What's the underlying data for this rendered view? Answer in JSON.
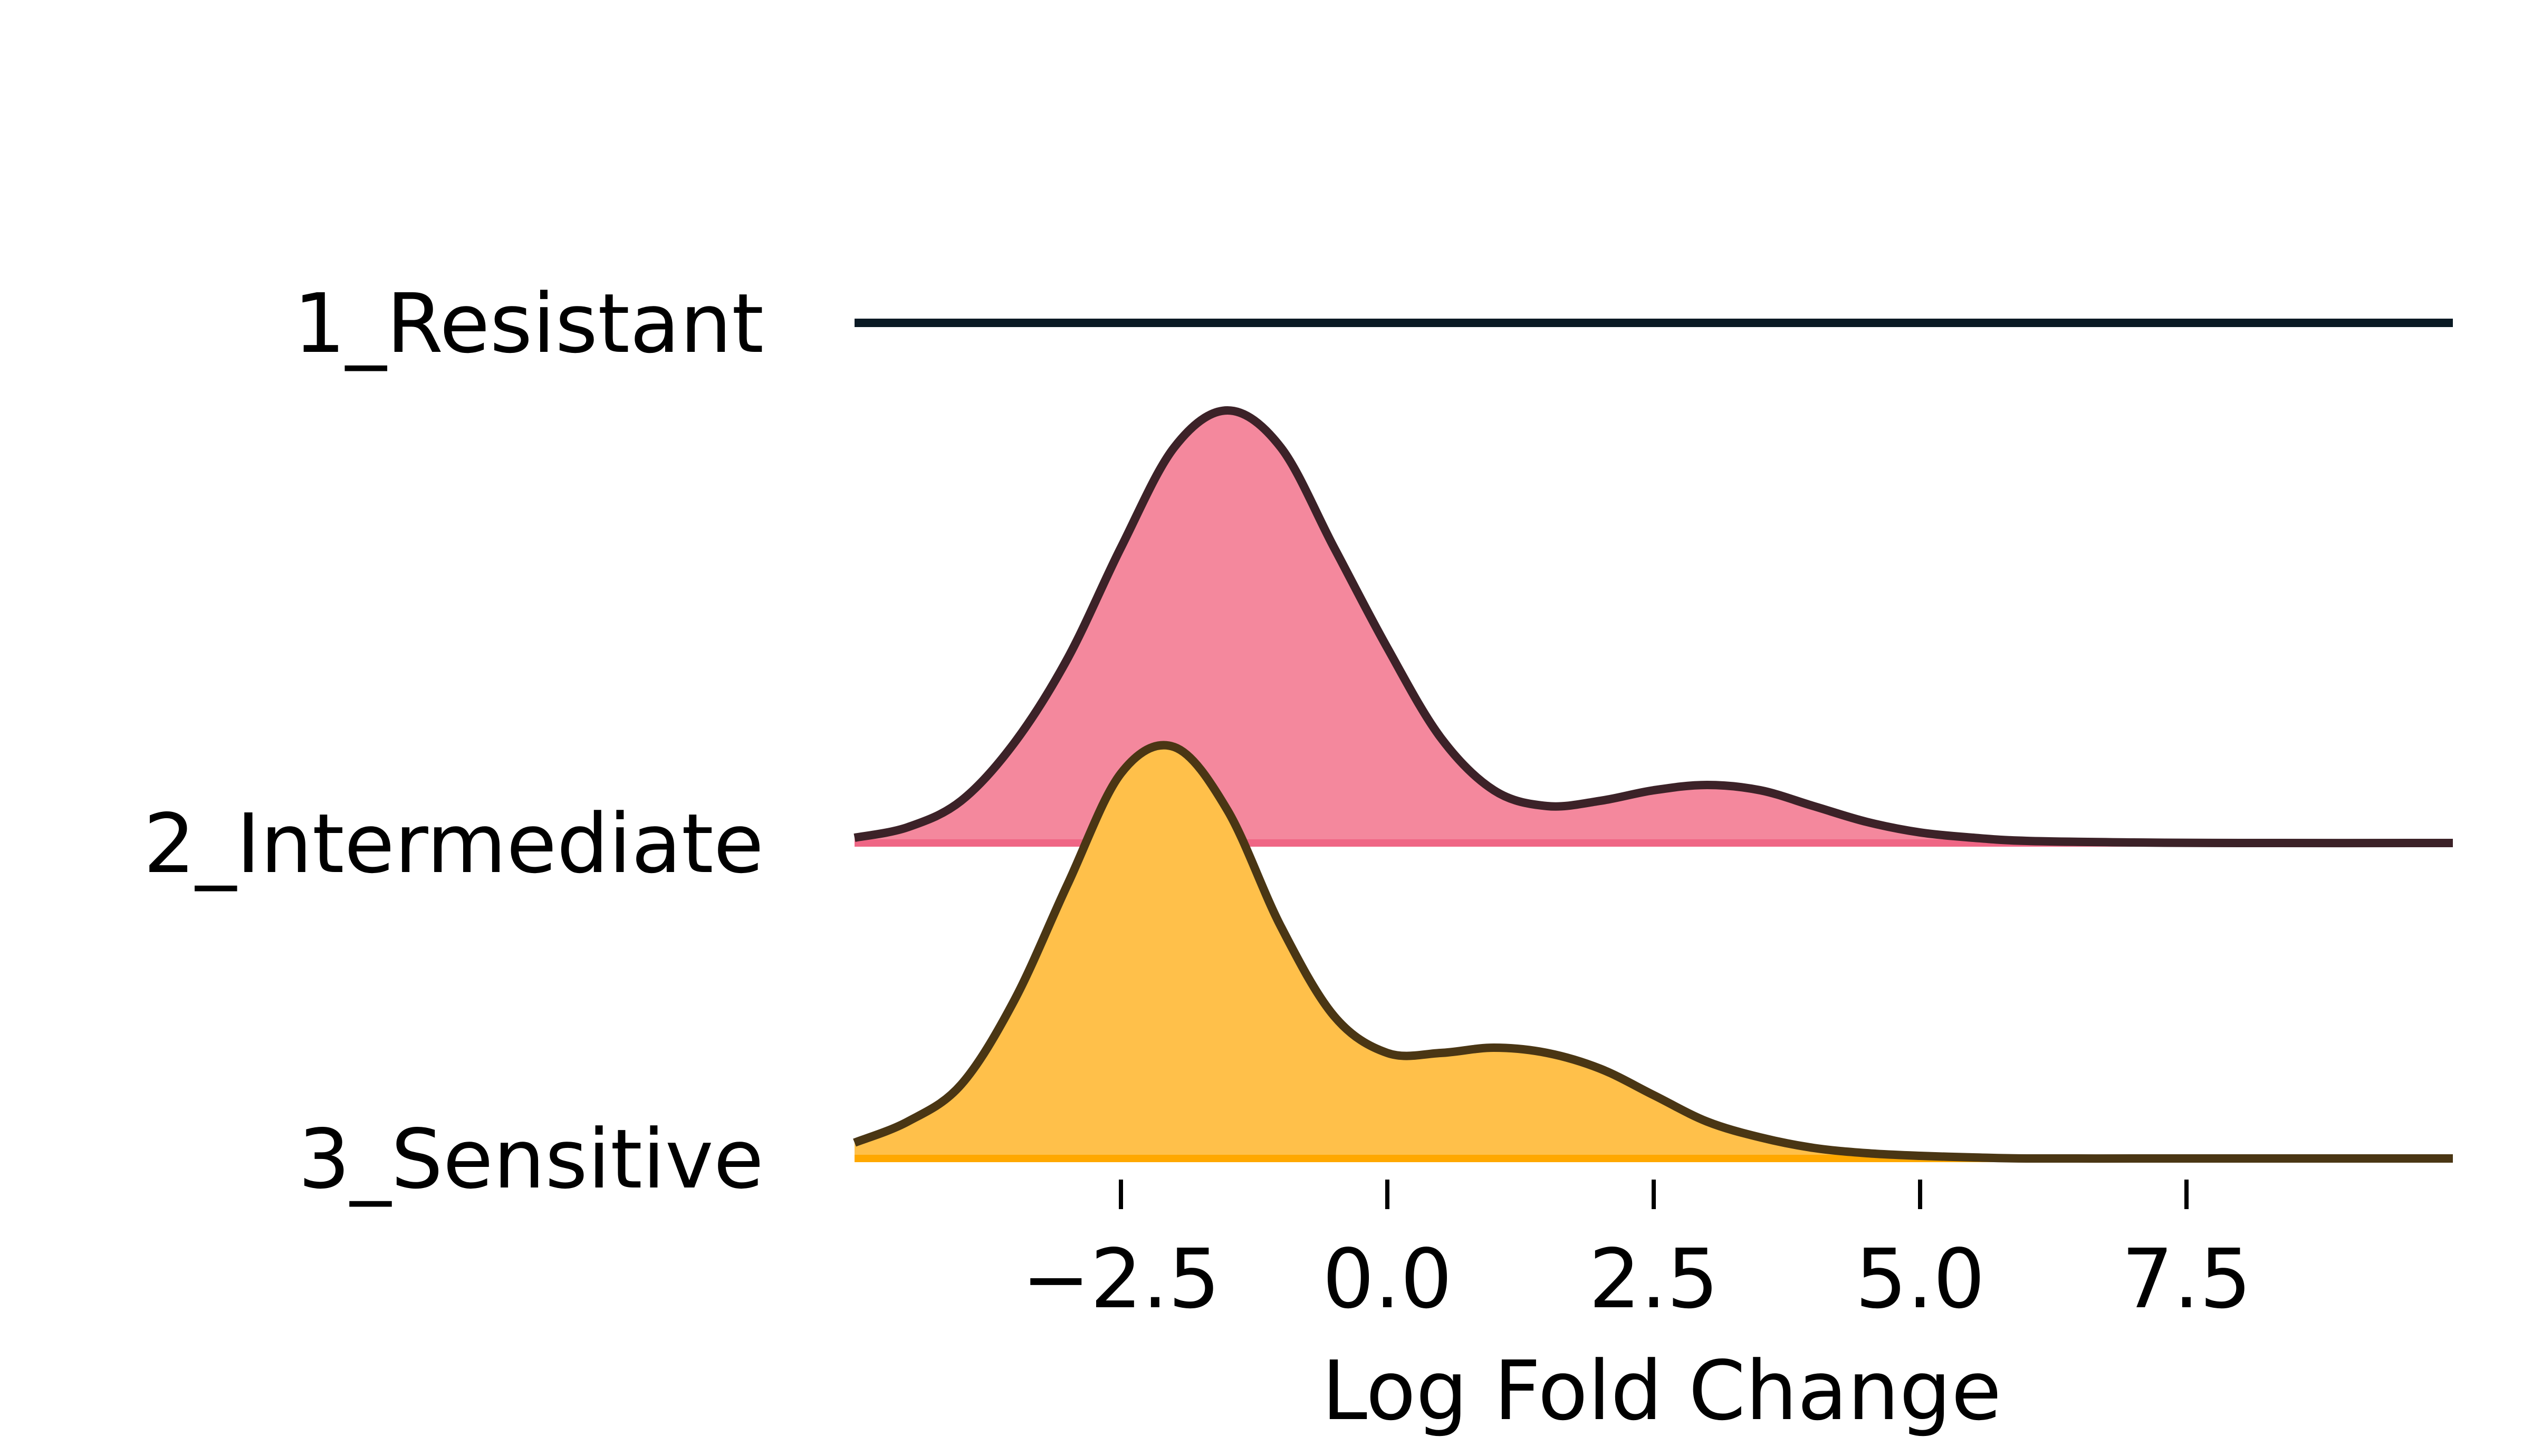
{
  "chart_data": {
    "type": "area",
    "subtype": "ridgeline",
    "title": "",
    "xlabel": "Log Fold Change",
    "ylabel": "",
    "xlim": [
      -5.0,
      10.0
    ],
    "xticks": [
      -2.5,
      0.0,
      2.5,
      5.0,
      7.5
    ],
    "xtick_labels": [
      "−2.5",
      "0.0",
      "2.5",
      "5.0",
      "7.5"
    ],
    "grid": false,
    "x": [
      -5.0,
      -4.5,
      -4.0,
      -3.5,
      -3.0,
      -2.5,
      -2.0,
      -1.5,
      -1.0,
      -0.5,
      0.0,
      0.5,
      1.0,
      1.5,
      2.0,
      2.5,
      3.0,
      3.5,
      4.0,
      4.5,
      5.0,
      5.5,
      6.0,
      7.0,
      8.0,
      10.0
    ],
    "series": [
      {
        "name": "1_Resistant",
        "color": "#0a1a24",
        "fill": "none",
        "density": [
          0,
          0,
          0,
          0,
          0,
          0,
          0,
          0,
          0,
          0,
          0,
          0,
          0,
          0,
          0,
          0,
          0,
          0,
          0,
          0,
          0,
          0,
          0,
          0,
          0,
          0
        ]
      },
      {
        "name": "2_Intermediate",
        "color": "#ef6685",
        "fill": "#f4889d",
        "line": "#3c2228",
        "density": [
          0.01,
          0.03,
          0.08,
          0.19,
          0.35,
          0.56,
          0.75,
          0.82,
          0.75,
          0.56,
          0.37,
          0.2,
          0.1,
          0.07,
          0.08,
          0.1,
          0.11,
          0.1,
          0.07,
          0.04,
          0.02,
          0.01,
          0.004,
          0.001,
          0.0,
          0.0
        ]
      },
      {
        "name": "3_Sensitive",
        "color": "#ffa800",
        "fill": "#ffc04a",
        "line": "#4a3614",
        "density": [
          0.03,
          0.07,
          0.14,
          0.3,
          0.52,
          0.73,
          0.78,
          0.66,
          0.44,
          0.27,
          0.2,
          0.2,
          0.21,
          0.2,
          0.17,
          0.12,
          0.07,
          0.04,
          0.02,
          0.01,
          0.005,
          0.002,
          0.0,
          0.0,
          0.0,
          0.0
        ]
      }
    ]
  }
}
